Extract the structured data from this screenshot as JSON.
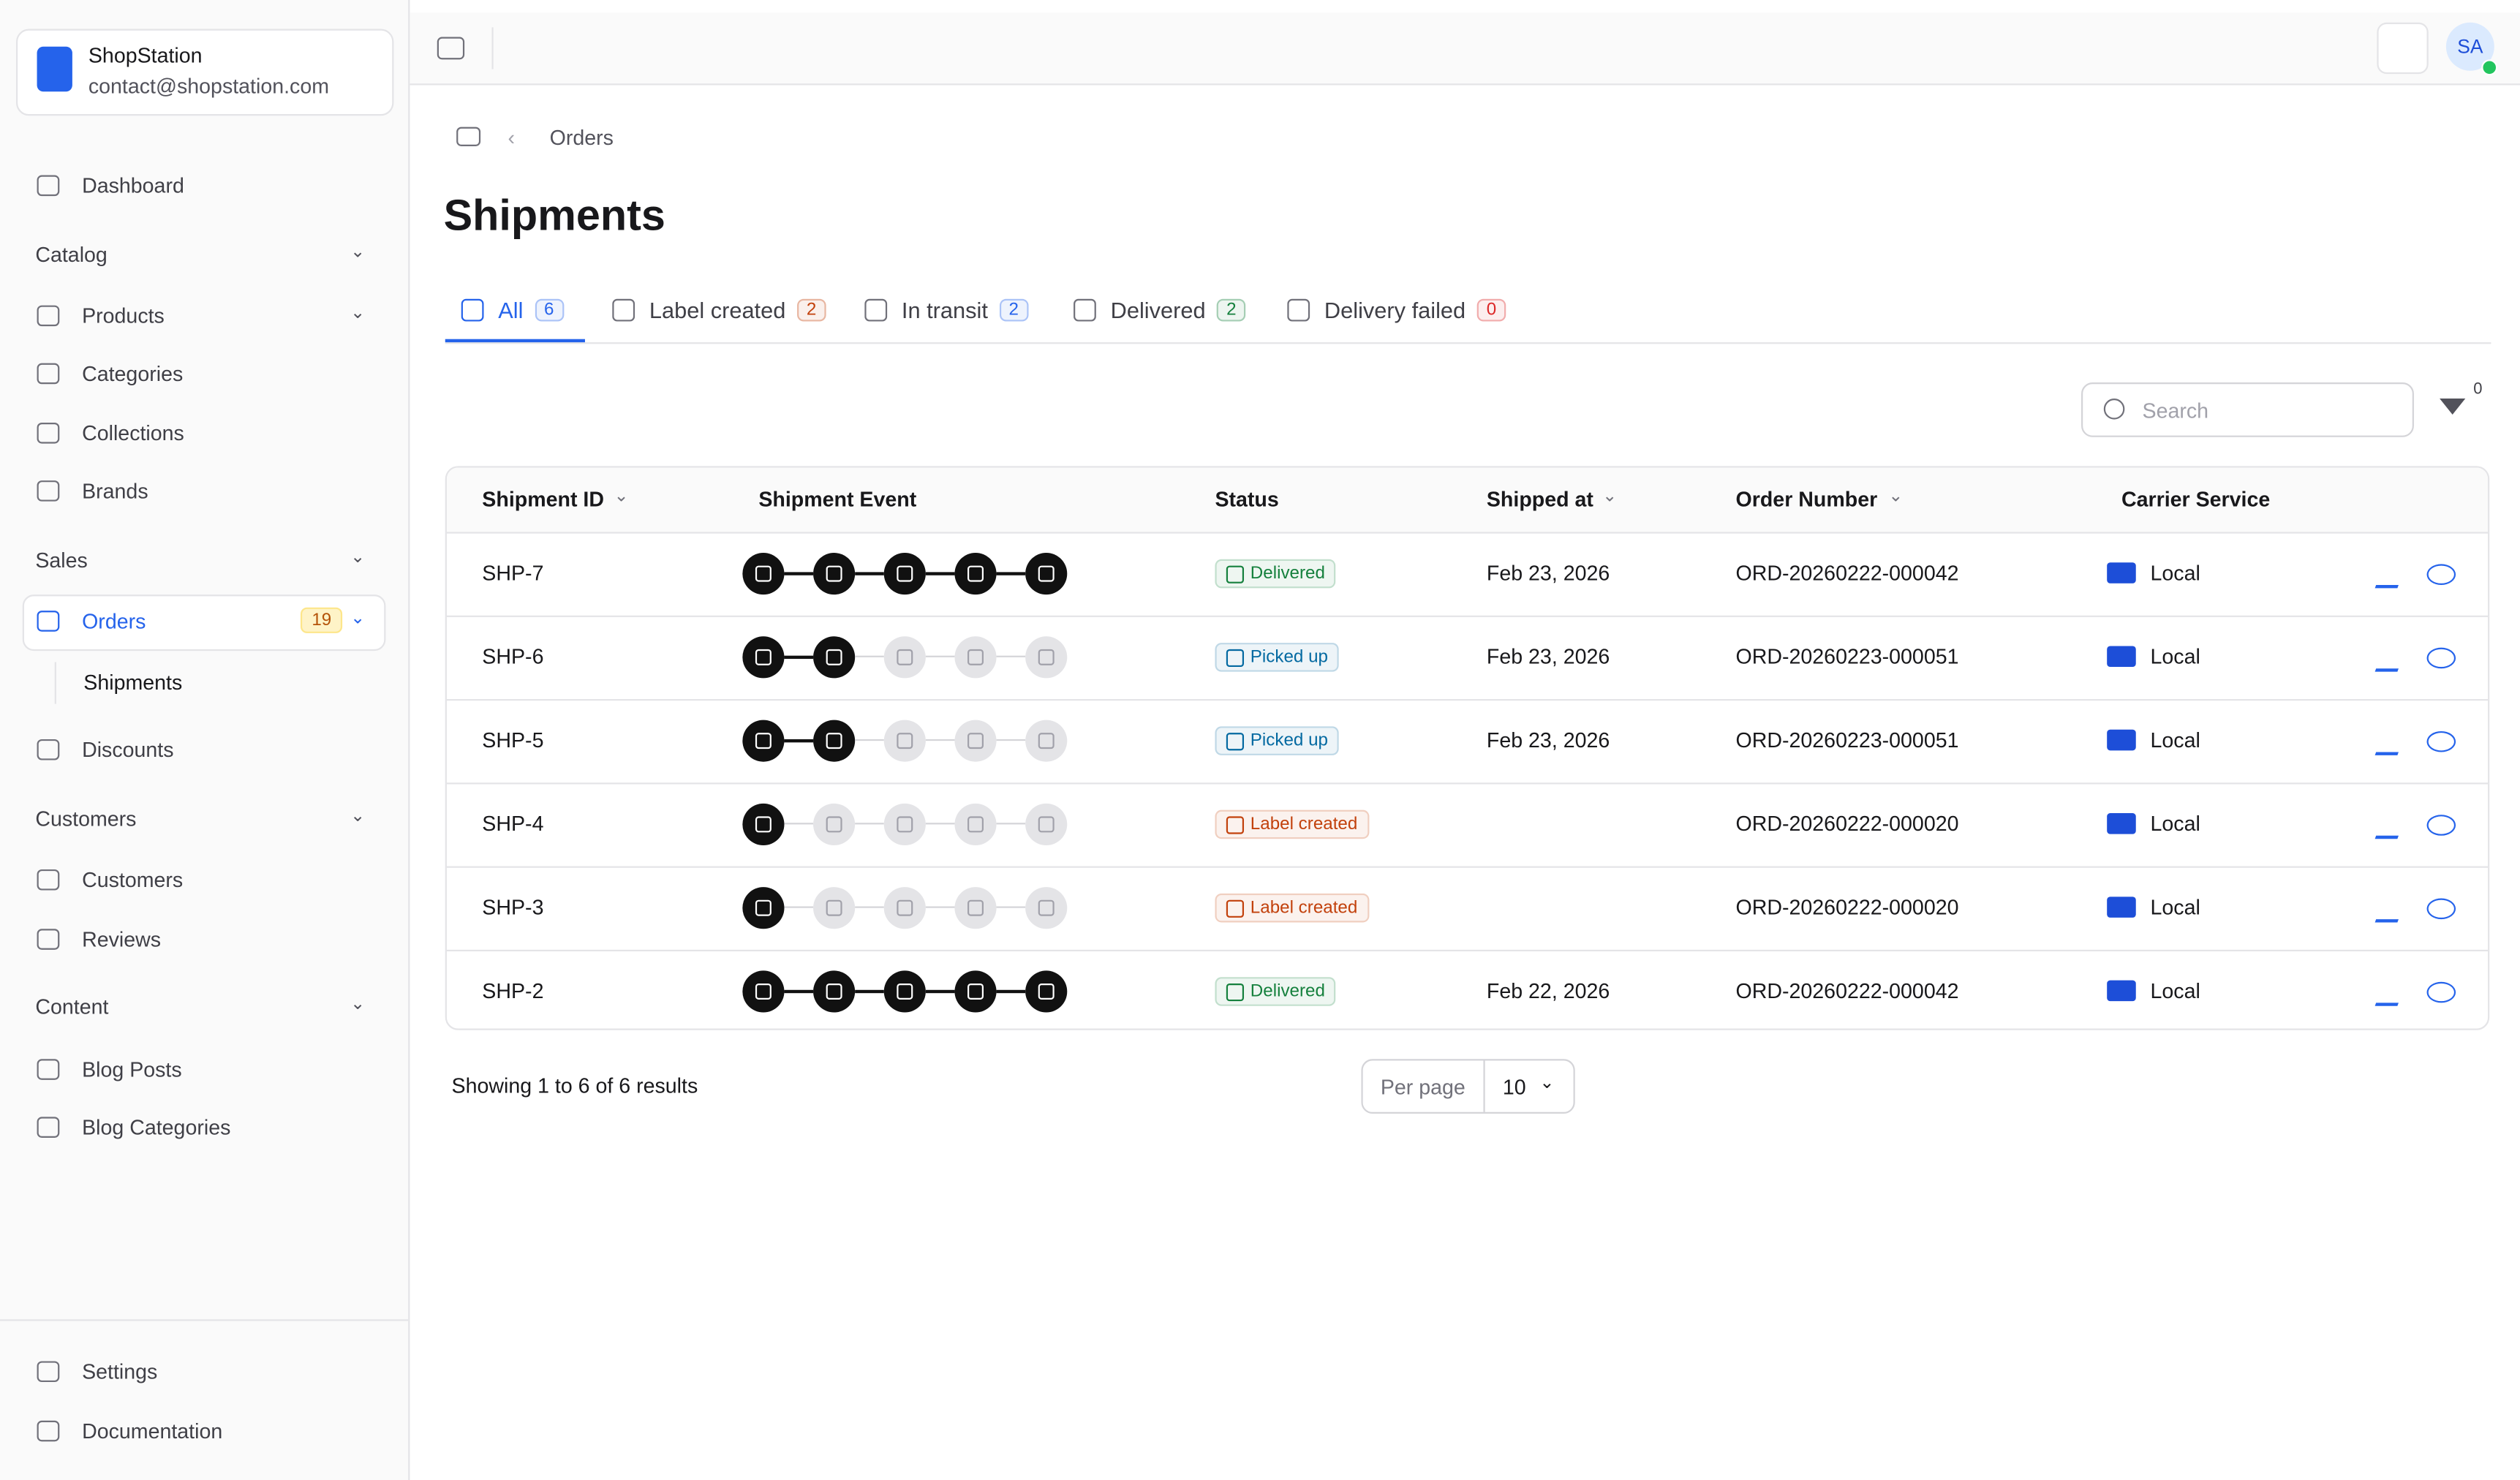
{
  "brand": {
    "name": "ShopStation",
    "email": "contact@shopstation.com"
  },
  "nav": [
    {
      "label": "Dashboard",
      "kind": "item"
    },
    {
      "label": "Catalog",
      "kind": "section"
    },
    {
      "label": "Products",
      "kind": "item",
      "chevron": true
    },
    {
      "label": "Categories",
      "kind": "item"
    },
    {
      "label": "Collections",
      "kind": "item"
    },
    {
      "label": "Brands",
      "kind": "item"
    },
    {
      "label": "Sales",
      "kind": "section"
    },
    {
      "label": "Orders",
      "kind": "item",
      "active": true,
      "badge": 19,
      "chevron": true
    },
    {
      "label": "Shipments",
      "kind": "sub"
    },
    {
      "label": "Discounts",
      "kind": "item"
    },
    {
      "label": "Customers",
      "kind": "section"
    },
    {
      "label": "Customers",
      "kind": "item"
    },
    {
      "label": "Reviews",
      "kind": "item"
    },
    {
      "label": "Content",
      "kind": "section"
    },
    {
      "label": "Blog Posts",
      "kind": "item"
    },
    {
      "label": "Blog Categories",
      "kind": "item"
    }
  ],
  "nav_bottom": [
    "Settings",
    "Documentation"
  ],
  "avatar": "SA",
  "breadcrumb": "Orders",
  "title": "Shipments",
  "tabs": [
    {
      "label": "All",
      "count": 6,
      "color": "#2563eb",
      "active": true
    },
    {
      "label": "Label created",
      "count": 2,
      "color": "#c2410c"
    },
    {
      "label": "In transit",
      "count": 2,
      "color": "#2563eb"
    },
    {
      "label": "Delivered",
      "count": 2,
      "color": "#15803d"
    },
    {
      "label": "Delivery failed",
      "count": 0,
      "color": "#dc2626"
    }
  ],
  "search_placeholder": "Search",
  "filter_count": 0,
  "table": {
    "headers": [
      "Shipment ID",
      "Shipment Event",
      "Status",
      "Shipped at",
      "Order Number",
      "Carrier Service"
    ],
    "rows": [
      {
        "id": "SHP-7",
        "events_done": 5,
        "status": "Delivered",
        "status_color": "#15803d",
        "shipped": "Feb 23, 2026",
        "order": "ORD-20260222-000042",
        "carrier": "Local"
      },
      {
        "id": "SHP-6",
        "events_done": 2,
        "status": "Picked up",
        "status_color": "#0369a1",
        "shipped": "Feb 23, 2026",
        "order": "ORD-20260223-000051",
        "carrier": "Local"
      },
      {
        "id": "SHP-5",
        "events_done": 2,
        "status": "Picked up",
        "status_color": "#0369a1",
        "shipped": "Feb 23, 2026",
        "order": "ORD-20260223-000051",
        "carrier": "Local"
      },
      {
        "id": "SHP-4",
        "events_done": 1,
        "status": "Label created",
        "status_color": "#c2410c",
        "shipped": null,
        "order": "ORD-20260222-000020",
        "carrier": "Local"
      },
      {
        "id": "SHP-3",
        "events_done": 1,
        "status": "Label created",
        "status_color": "#c2410c",
        "shipped": null,
        "order": "ORD-20260222-000020",
        "carrier": "Local"
      },
      {
        "id": "SHP-2",
        "events_done": 5,
        "status": "Delivered",
        "status_color": "#15803d",
        "shipped": "Feb 22, 2026",
        "order": "ORD-20260222-000042",
        "carrier": "Local"
      }
    ]
  },
  "footer": {
    "summary": "Showing 1 to 6 of 6 results",
    "per_page_label": "Per page",
    "per_page": 10
  }
}
